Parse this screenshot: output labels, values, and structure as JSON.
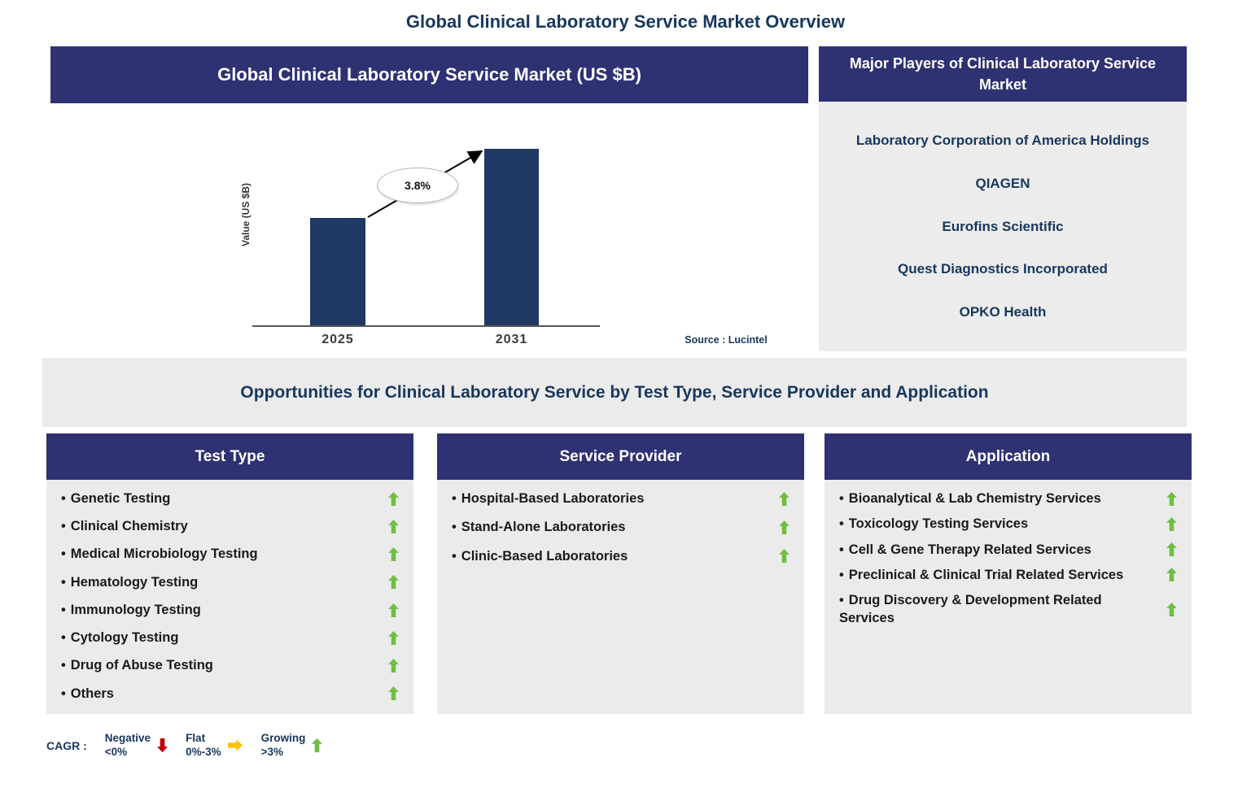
{
  "page": {
    "title": "Global Clinical Laboratory Service Market Overview"
  },
  "chart_panel": {
    "title": "Global Clinical Laboratory Service Market (US $B)",
    "source": "Source : Lucintel"
  },
  "chart_data": {
    "type": "bar",
    "title": "Global Clinical Laboratory Service Market (US $B)",
    "categories": [
      "2025",
      "2031"
    ],
    "values": [
      61,
      100
    ],
    "values_note": "axis unlabeled; values are relative estimates from bar heights",
    "ylabel": "Value (US $B)",
    "annotation": "3.8%",
    "bar_color": "#1F3864",
    "grid": false,
    "legend_position": "none"
  },
  "major_players": {
    "title": "Major Players of Clinical Laboratory Service Market",
    "companies": [
      "Laboratory Corporation of America Holdings",
      "QIAGEN",
      "Eurofins Scientific",
      "Quest Diagnostics Incorporated",
      "OPKO Health"
    ]
  },
  "opportunities": {
    "title": "Opportunities for Clinical Laboratory Service by Test Type, Service Provider and Application"
  },
  "columns": {
    "test_type": {
      "title": "Test Type",
      "items": [
        "Genetic Testing",
        "Clinical Chemistry",
        "Medical Microbiology Testing",
        "Hematology Testing",
        "Immunology Testing",
        "Cytology Testing",
        "Drug of Abuse Testing",
        "Others"
      ]
    },
    "service_provider": {
      "title": "Service Provider",
      "items": [
        "Hospital-Based Laboratories",
        "Stand-Alone Laboratories",
        "Clinic-Based Laboratories"
      ]
    },
    "application": {
      "title": "Application",
      "items": [
        "Bioanalytical & Lab Chemistry Services",
        "Toxicology Testing Services",
        "Cell & Gene Therapy Related Services",
        "Preclinical & Clinical Trial Related Services",
        "Drug Discovery & Development Related Services"
      ]
    }
  },
  "legend": {
    "label": "CAGR :",
    "entries": [
      {
        "label": "Negative",
        "range": "<0%",
        "icon": "down-arrow",
        "color": "#C00000"
      },
      {
        "label": "Flat",
        "range": "0%-3%",
        "icon": "right-arrow",
        "color": "#FFC000"
      },
      {
        "label": "Growing",
        "range": ">3%",
        "icon": "up-arrow",
        "color": "#6FBE44"
      }
    ]
  },
  "colors": {
    "header_navy": "#2E3272",
    "bar_navy": "#1F3864",
    "panel_gray": "#EBEBEB",
    "title_navy": "#17375E",
    "growing_green": "#6FBE44",
    "negative_red": "#C00000",
    "flat_yellow": "#FFC000"
  }
}
